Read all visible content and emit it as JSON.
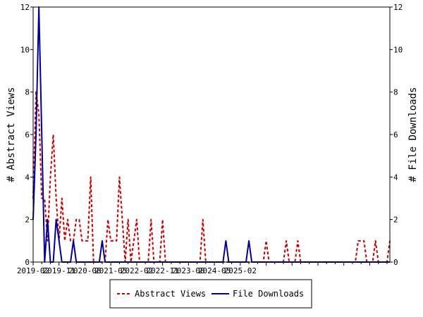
{
  "chart_data": {
    "type": "line",
    "ylabel_left": "# Abstract Views",
    "ylabel_right": "# File Downloads",
    "ylim": [
      0,
      12
    ],
    "yticks": [
      0,
      2,
      4,
      6,
      8,
      10,
      12
    ],
    "x_tick_labels": [
      "2019-02",
      "2019-11",
      "2020-08",
      "2021-05",
      "2022-02",
      "2022-11",
      "2023-08",
      "2024-05",
      "2025-02"
    ],
    "legend_position": "bottom",
    "series": [
      {
        "name": "Abstract Views",
        "color": "#cc0000",
        "style": "dashed",
        "values": [
          3,
          8,
          7,
          3,
          3,
          1,
          4,
          6,
          3,
          1,
          3,
          1,
          2,
          1,
          1,
          2,
          2,
          1,
          1,
          1,
          4,
          0,
          0,
          0,
          0,
          0,
          2,
          1,
          1,
          1,
          4,
          2,
          0,
          2,
          0,
          1,
          2,
          0,
          0,
          0,
          0,
          2,
          0,
          0,
          0,
          2,
          0,
          0,
          0,
          0,
          0,
          0,
          0,
          0,
          0,
          0,
          0,
          0,
          0,
          2,
          0,
          0,
          0,
          0,
          0,
          0,
          0,
          0,
          0,
          0,
          0,
          0,
          0,
          0,
          0,
          0,
          0,
          0,
          0,
          0,
          0,
          1,
          0,
          0,
          0,
          0,
          0,
          0,
          1,
          0,
          0,
          0,
          1,
          0,
          0,
          0,
          0,
          0,
          0,
          0,
          0,
          0,
          0,
          0,
          0,
          0,
          0,
          0,
          0,
          0,
          0,
          0,
          0,
          1,
          1,
          1,
          0,
          0,
          0,
          1,
          0,
          0,
          0,
          0,
          1
        ]
      },
      {
        "name": "File Downloads",
        "color": "#000099",
        "style": "solid",
        "values": [
          2,
          6,
          12,
          6,
          0,
          2,
          0,
          0,
          2,
          1,
          0,
          0,
          0,
          0,
          1,
          0,
          0,
          0,
          0,
          0,
          0,
          0,
          0,
          0,
          1,
          0,
          0,
          0,
          0,
          0,
          0,
          0,
          0,
          0,
          0,
          0,
          0,
          0,
          0,
          0,
          0,
          0,
          0,
          0,
          0,
          0,
          0,
          0,
          0,
          0,
          0,
          0,
          0,
          0,
          0,
          0,
          0,
          0,
          0,
          0,
          0,
          0,
          0,
          0,
          0,
          0,
          0,
          1,
          0,
          0,
          0,
          0,
          0,
          0,
          0,
          1,
          0,
          0,
          0,
          0,
          0,
          0,
          0,
          0,
          0,
          0,
          0,
          0,
          0,
          0,
          0,
          0,
          0,
          0,
          0,
          0,
          0,
          0,
          0,
          0,
          0,
          0,
          0,
          0,
          0,
          0,
          0,
          0,
          0,
          0,
          0,
          0,
          0,
          0,
          0,
          0,
          0,
          0,
          0,
          0,
          0,
          0,
          0,
          0,
          0
        ]
      }
    ]
  }
}
